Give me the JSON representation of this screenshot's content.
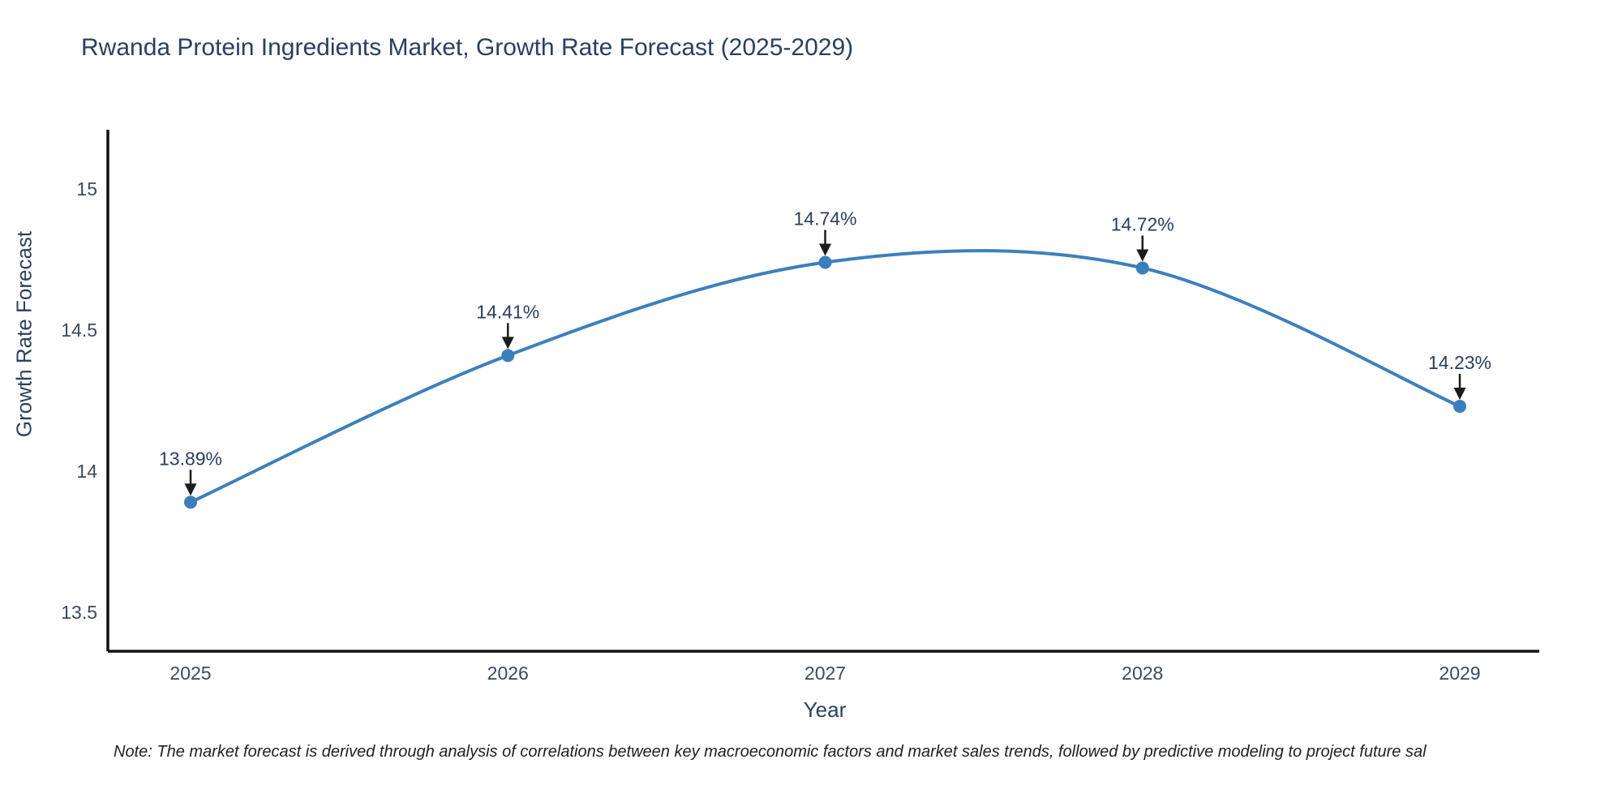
{
  "chart_data": {
    "type": "line",
    "title": "Rwanda Protein Ingredients Market, Growth Rate Forecast (2025-2029)",
    "xlabel": "Year",
    "ylabel": "Growth Rate Forecast",
    "x": [
      2025,
      2026,
      2027,
      2028,
      2029
    ],
    "y": [
      13.89,
      14.41,
      14.74,
      14.72,
      14.23
    ],
    "point_labels": [
      "13.89%",
      "14.41%",
      "14.74%",
      "14.72%",
      "14.23%"
    ],
    "xtick_labels": [
      "2025",
      "2026",
      "2027",
      "2028",
      "2029"
    ],
    "ytick_values": [
      13.5,
      14,
      14.5,
      15
    ],
    "ytick_labels": [
      "13.5",
      "14",
      "14.5",
      "15"
    ],
    "xlim": [
      2024.74,
      2029.25
    ],
    "ylim": [
      13.36,
      15.21
    ],
    "line_shape": "spline",
    "line_color": "#3d7fbe",
    "marker_color": "#3a7ebd",
    "axis_color": "#111111",
    "annotation_arrow_color": "#1c1c1c",
    "text_color": "#2a3f5f",
    "tick_color": "#3b4a5c",
    "legend": "none",
    "grid": "off",
    "note": "Note: The market forecast is derived through analysis of correlations between key macroeconomic factors and market sales trends, followed by predictive modeling to project future sal"
  }
}
